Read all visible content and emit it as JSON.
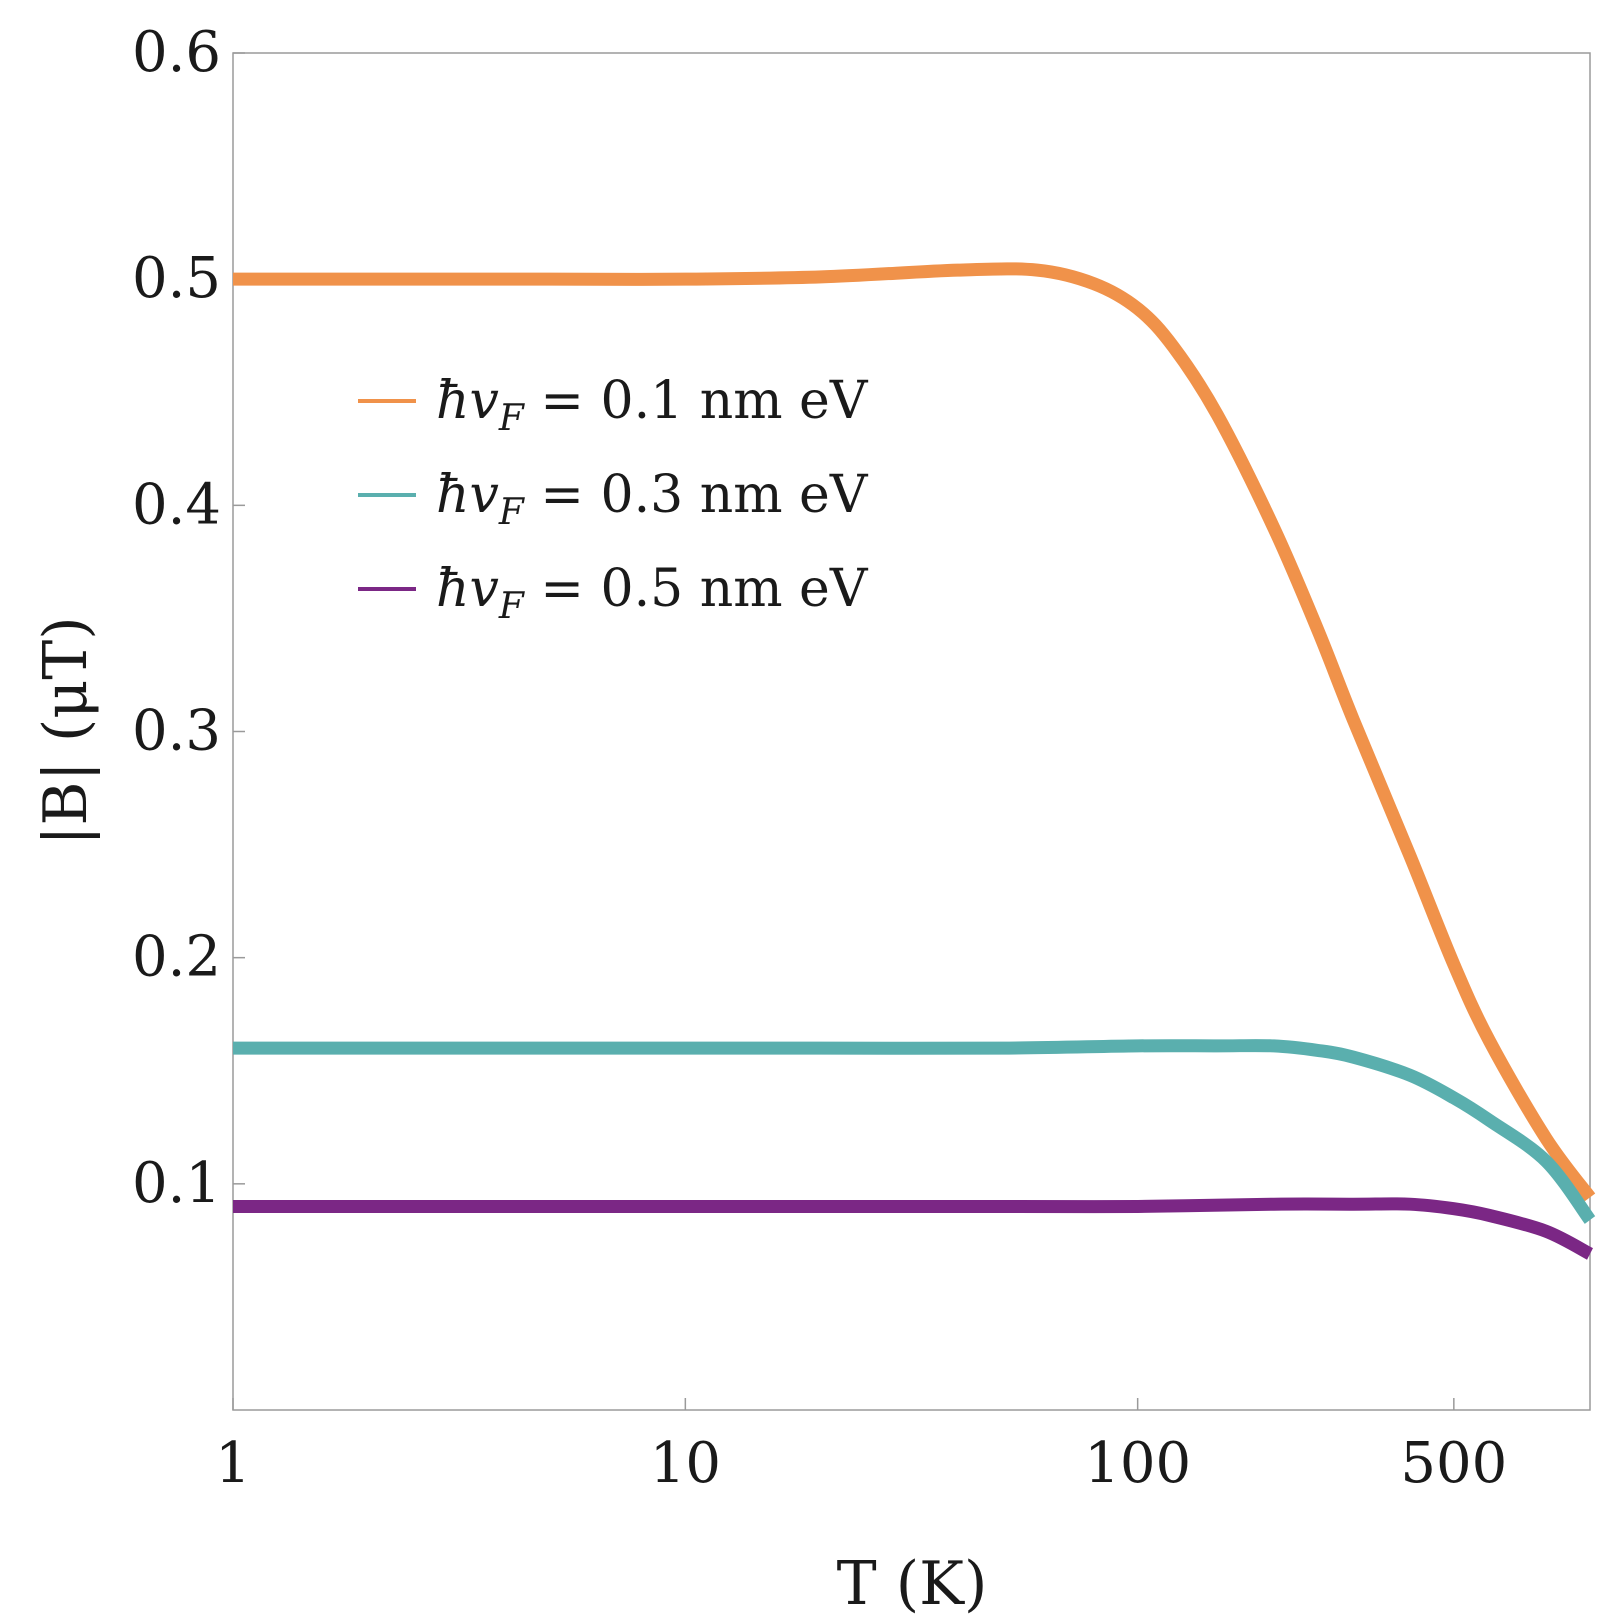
{
  "chart_data": {
    "type": "line",
    "title": "",
    "xlabel": "T (K)",
    "ylabel": "|B| (μT)",
    "xscale": "log",
    "xlim": [
      1,
      1000
    ],
    "ylim": [
      0,
      0.6
    ],
    "grid": false,
    "legend_position": "upper-left",
    "x_ticks": [
      {
        "value": 1,
        "label": "1"
      },
      {
        "value": 10,
        "label": "10"
      },
      {
        "value": 100,
        "label": "100"
      },
      {
        "value": 500,
        "label": "500"
      }
    ],
    "y_ticks": [
      {
        "value": 0.1,
        "label": "0.1"
      },
      {
        "value": 0.2,
        "label": "0.2"
      },
      {
        "value": 0.3,
        "label": "0.3"
      },
      {
        "value": 0.4,
        "label": "0.4"
      },
      {
        "value": 0.5,
        "label": "0.5"
      },
      {
        "value": 0.6,
        "label": "0.6"
      }
    ],
    "series": [
      {
        "name": "ħv_F = 0.1 nm eV",
        "color": "#F0924A",
        "x": [
          1,
          2,
          5,
          10,
          20,
          40,
          60,
          80,
          100,
          120,
          150,
          200,
          250,
          300,
          400,
          500,
          600,
          800,
          1000
        ],
        "y": [
          0.5,
          0.5,
          0.5,
          0.5,
          0.501,
          0.504,
          0.504,
          0.498,
          0.487,
          0.47,
          0.44,
          0.39,
          0.345,
          0.305,
          0.245,
          0.197,
          0.163,
          0.12,
          0.094
        ]
      },
      {
        "name": "ħv_F = 0.3 nm eV",
        "color": "#5AAFAE",
        "x": [
          1,
          2,
          5,
          10,
          20,
          50,
          100,
          150,
          200,
          250,
          300,
          400,
          500,
          600,
          800,
          1000
        ],
        "y": [
          0.16,
          0.16,
          0.16,
          0.16,
          0.16,
          0.16,
          0.161,
          0.161,
          0.161,
          0.159,
          0.156,
          0.148,
          0.138,
          0.128,
          0.11,
          0.084
        ]
      },
      {
        "name": "ħv_F = 0.5 nm eV",
        "color": "#7B2785",
        "x": [
          1,
          2,
          5,
          10,
          20,
          50,
          100,
          200,
          300,
          400,
          500,
          600,
          800,
          1000
        ],
        "y": [
          0.09,
          0.09,
          0.09,
          0.09,
          0.09,
          0.09,
          0.09,
          0.091,
          0.091,
          0.091,
          0.089,
          0.086,
          0.079,
          0.069
        ]
      }
    ],
    "legend_entries": [
      {
        "prefix": "ħv",
        "subscript": "F",
        "suffix": " = 0.1 nm eV"
      },
      {
        "prefix": "ħv",
        "subscript": "F",
        "suffix": " = 0.3 nm eV"
      },
      {
        "prefix": "ħv",
        "subscript": "F",
        "suffix": " = 0.5 nm eV"
      }
    ]
  }
}
